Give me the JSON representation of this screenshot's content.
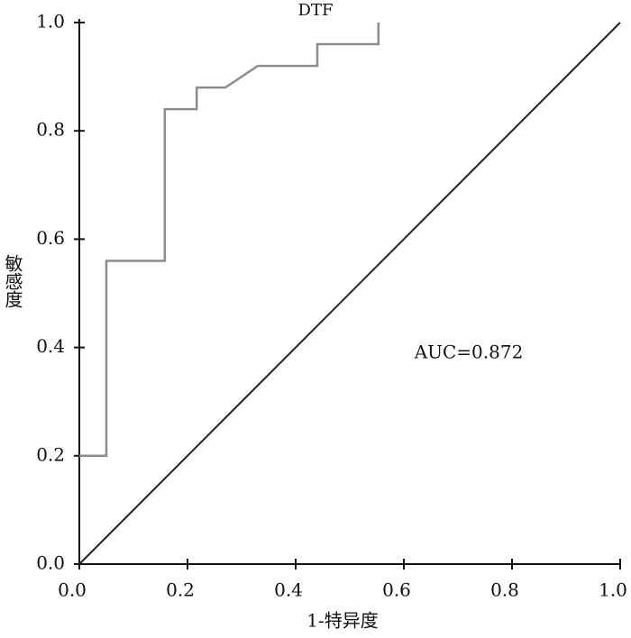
{
  "chart_data": {
    "type": "line",
    "title": "DTF",
    "x_label": "1-特异度",
    "y_label": "敏感度",
    "annotations": [
      "AUC=0.872"
    ],
    "series": [
      {
        "name": "DTF",
        "color": "#8c8c8c",
        "x": [
          0,
          0.05,
          0.05,
          0.158,
          0.158,
          0.217,
          0.217,
          0.27,
          0.33,
          0.44,
          0.44,
          0.553,
          0.553
        ],
        "values": [
          0.2,
          0.2,
          0.56,
          0.56,
          0.84,
          0.84,
          0.88,
          0.88,
          0.92,
          0.92,
          0.96,
          0.96,
          1.0
        ]
      }
    ],
    "reference_line": {
      "color": "#222222",
      "x": [
        0,
        1
      ],
      "values": [
        0,
        1
      ]
    },
    "xlim": [
      0,
      1
    ],
    "ylim": [
      0,
      1
    ],
    "xticks": [
      {
        "value": 0,
        "label": "0.0"
      },
      0.2,
      0.4,
      0.6,
      0.8,
      {
        "value": 1,
        "label": "1.0"
      }
    ],
    "yticks": [
      {
        "value": 0,
        "label": "0.0"
      },
      0.2,
      0.4,
      0.6,
      0.8,
      {
        "value": 1,
        "label": "1.0"
      }
    ],
    "grid": false
  }
}
